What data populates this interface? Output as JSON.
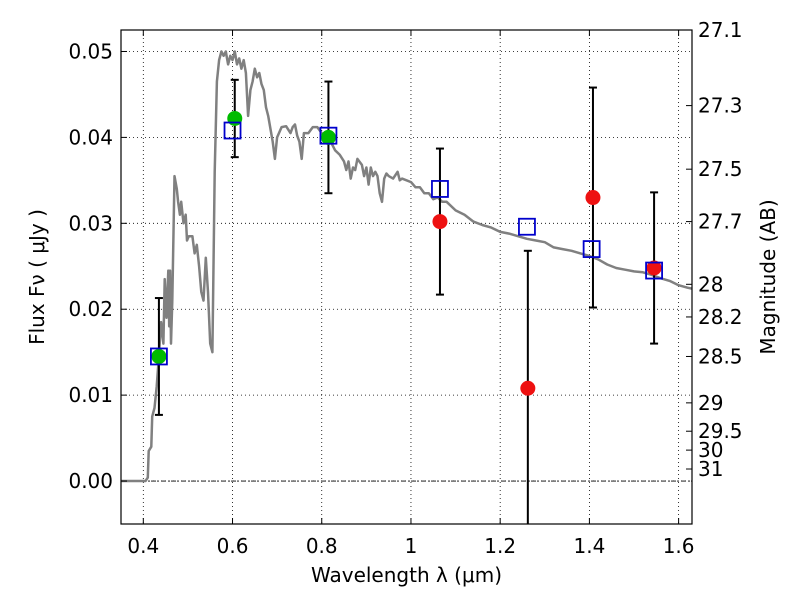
{
  "chart_data": {
    "type": "scatter",
    "title": "",
    "xlabel": "Wavelength  λ (μm)",
    "ylabel": "Flux  Fν  ( μJy )",
    "y2label": "Magnitude (AB)",
    "xlim": [
      0.35,
      1.63
    ],
    "ylim": [
      -0.005,
      0.0525
    ],
    "grid": true,
    "x_ticks": [
      0.4,
      0.6,
      0.8,
      1.0,
      1.2,
      1.4,
      1.6
    ],
    "x_tick_labels": [
      "0.4",
      "0.6",
      "0.8",
      "1",
      "1.2",
      "1.4",
      "1.6"
    ],
    "y_ticks": [
      0.0,
      0.01,
      0.02,
      0.03,
      0.04,
      0.05
    ],
    "y_tick_labels": [
      "0.00",
      "0.01",
      "0.02",
      "0.03",
      "0.04",
      "0.05"
    ],
    "y2_ticks": [
      {
        "label": "27.1",
        "flux": 0.0525
      },
      {
        "label": "27.3",
        "flux": 0.0437
      },
      {
        "label": "27.5",
        "flux": 0.0363
      },
      {
        "label": "27.7",
        "flux": 0.0302
      },
      {
        "label": "28",
        "flux": 0.0229
      },
      {
        "label": "28.2",
        "flux": 0.0191
      },
      {
        "label": "28.5",
        "flux": 0.0145
      },
      {
        "label": "29",
        "flux": 0.0091
      },
      {
        "label": "29.5",
        "flux": 0.0058
      },
      {
        "label": "30",
        "flux": 0.0036
      },
      {
        "label": "31",
        "flux": 0.0014
      }
    ],
    "series": [
      {
        "kind": "model-spectrum",
        "color": "#808080",
        "points": [
          [
            0.35,
            0.0
          ],
          [
            0.38,
            0.0
          ],
          [
            0.39,
            0.0
          ],
          [
            0.4,
            0.0
          ],
          [
            0.405,
            0.0
          ],
          [
            0.41,
            0.0004
          ],
          [
            0.412,
            0.0035
          ],
          [
            0.418,
            0.004
          ],
          [
            0.42,
            0.0075
          ],
          [
            0.425,
            0.0085
          ],
          [
            0.43,
            0.011
          ],
          [
            0.435,
            0.0145
          ],
          [
            0.44,
            0.0185
          ],
          [
            0.445,
            0.016
          ],
          [
            0.448,
            0.0235
          ],
          [
            0.452,
            0.019
          ],
          [
            0.456,
            0.0245
          ],
          [
            0.458,
            0.018
          ],
          [
            0.46,
            0.0245
          ],
          [
            0.462,
            0.016
          ],
          [
            0.465,
            0.021
          ],
          [
            0.47,
            0.0355
          ],
          [
            0.475,
            0.034
          ],
          [
            0.478,
            0.0325
          ],
          [
            0.482,
            0.031
          ],
          [
            0.485,
            0.0325
          ],
          [
            0.49,
            0.03
          ],
          [
            0.495,
            0.031
          ],
          [
            0.498,
            0.028
          ],
          [
            0.502,
            0.0285
          ],
          [
            0.51,
            0.0285
          ],
          [
            0.515,
            0.0265
          ],
          [
            0.52,
            0.0275
          ],
          [
            0.525,
            0.025
          ],
          [
            0.53,
            0.022
          ],
          [
            0.535,
            0.021
          ],
          [
            0.54,
            0.026
          ],
          [
            0.545,
            0.022
          ],
          [
            0.55,
            0.016
          ],
          [
            0.555,
            0.015
          ],
          [
            0.56,
            0.036
          ],
          [
            0.565,
            0.0465
          ],
          [
            0.57,
            0.049
          ],
          [
            0.575,
            0.05
          ],
          [
            0.58,
            0.0495
          ],
          [
            0.585,
            0.05
          ],
          [
            0.59,
            0.0485
          ],
          [
            0.595,
            0.0495
          ],
          [
            0.6,
            0.049
          ],
          [
            0.605,
            0.05
          ],
          [
            0.61,
            0.0485
          ],
          [
            0.615,
            0.0492
          ],
          [
            0.62,
            0.048
          ],
          [
            0.625,
            0.049
          ],
          [
            0.63,
            0.0475
          ],
          [
            0.635,
            0.0425
          ],
          [
            0.64,
            0.0455
          ],
          [
            0.645,
            0.0465
          ],
          [
            0.65,
            0.048
          ],
          [
            0.655,
            0.047
          ],
          [
            0.66,
            0.0475
          ],
          [
            0.665,
            0.0462
          ],
          [
            0.67,
            0.0455
          ],
          [
            0.675,
            0.0435
          ],
          [
            0.68,
            0.0425
          ],
          [
            0.69,
            0.0395
          ],
          [
            0.695,
            0.0375
          ],
          [
            0.7,
            0.04
          ],
          [
            0.71,
            0.0412
          ],
          [
            0.72,
            0.0413
          ],
          [
            0.73,
            0.0405
          ],
          [
            0.735,
            0.0412
          ],
          [
            0.74,
            0.0415
          ],
          [
            0.745,
            0.0402
          ],
          [
            0.75,
            0.0395
          ],
          [
            0.755,
            0.0375
          ],
          [
            0.76,
            0.0405
          ],
          [
            0.77,
            0.0405
          ],
          [
            0.78,
            0.0412
          ],
          [
            0.79,
            0.0412
          ],
          [
            0.8,
            0.0405
          ],
          [
            0.81,
            0.04
          ],
          [
            0.82,
            0.0395
          ],
          [
            0.83,
            0.0385
          ],
          [
            0.84,
            0.038
          ],
          [
            0.85,
            0.0372
          ],
          [
            0.855,
            0.0362
          ],
          [
            0.86,
            0.0372
          ],
          [
            0.865,
            0.0352
          ],
          [
            0.87,
            0.0365
          ],
          [
            0.875,
            0.0362
          ],
          [
            0.88,
            0.0375
          ],
          [
            0.89,
            0.0368
          ],
          [
            0.895,
            0.0355
          ],
          [
            0.9,
            0.0365
          ],
          [
            0.905,
            0.0345
          ],
          [
            0.91,
            0.0365
          ],
          [
            0.915,
            0.0355
          ],
          [
            0.92,
            0.036
          ],
          [
            0.925,
            0.0355
          ],
          [
            0.93,
            0.0335
          ],
          [
            0.935,
            0.0325
          ],
          [
            0.94,
            0.0352
          ],
          [
            0.945,
            0.0358
          ],
          [
            0.95,
            0.0355
          ],
          [
            0.96,
            0.0352
          ],
          [
            0.97,
            0.036
          ],
          [
            0.975,
            0.035
          ],
          [
            0.98,
            0.0352
          ],
          [
            0.99,
            0.035
          ],
          [
            1.0,
            0.0348
          ],
          [
            1.01,
            0.0342
          ],
          [
            1.02,
            0.0342
          ],
          [
            1.03,
            0.0335
          ],
          [
            1.04,
            0.0335
          ],
          [
            1.05,
            0.0328
          ],
          [
            1.06,
            0.033
          ],
          [
            1.07,
            0.0325
          ],
          [
            1.08,
            0.0325
          ],
          [
            1.1,
            0.0315
          ],
          [
            1.12,
            0.031
          ],
          [
            1.14,
            0.0302
          ],
          [
            1.16,
            0.0298
          ],
          [
            1.18,
            0.0295
          ],
          [
            1.2,
            0.029
          ],
          [
            1.22,
            0.0288
          ],
          [
            1.24,
            0.0285
          ],
          [
            1.26,
            0.0282
          ],
          [
            1.28,
            0.028
          ],
          [
            1.3,
            0.0278
          ],
          [
            1.32,
            0.0272
          ],
          [
            1.34,
            0.027
          ],
          [
            1.36,
            0.0268
          ],
          [
            1.38,
            0.0265
          ],
          [
            1.4,
            0.0262
          ],
          [
            1.42,
            0.0258
          ],
          [
            1.44,
            0.0252
          ],
          [
            1.46,
            0.0248
          ],
          [
            1.48,
            0.0246
          ],
          [
            1.5,
            0.0244
          ],
          [
            1.52,
            0.0243
          ],
          [
            1.54,
            0.024
          ],
          [
            1.56,
            0.0236
          ],
          [
            1.58,
            0.0233
          ],
          [
            1.6,
            0.0228
          ],
          [
            1.62,
            0.0225
          ],
          [
            1.63,
            0.0224
          ]
        ]
      },
      {
        "kind": "observed-points",
        "color_detected": "#00bb00",
        "color_marginal": "#ee1111",
        "points": [
          {
            "x": 0.435,
            "y": 0.0145,
            "err": 0.0068,
            "status": "detected"
          },
          {
            "x": 0.605,
            "y": 0.0422,
            "err": 0.0045,
            "status": "detected"
          },
          {
            "x": 0.815,
            "y": 0.04,
            "err": 0.0065,
            "status": "detected"
          },
          {
            "x": 1.065,
            "y": 0.0302,
            "err": 0.0085,
            "status": "marginal"
          },
          {
            "x": 1.262,
            "y": 0.0108,
            "err": 0.016,
            "status": "marginal"
          },
          {
            "x": 1.408,
            "y": 0.033,
            "err": 0.0128,
            "status": "marginal"
          },
          {
            "x": 1.545,
            "y": 0.0248,
            "err": 0.0088,
            "status": "marginal"
          }
        ]
      },
      {
        "kind": "model-band-flux",
        "color": "#0000cc",
        "points": [
          {
            "x": 0.435,
            "y": 0.0145
          },
          {
            "x": 0.6,
            "y": 0.0408
          },
          {
            "x": 0.815,
            "y": 0.0402
          },
          {
            "x": 1.065,
            "y": 0.034
          },
          {
            "x": 1.26,
            "y": 0.0296
          },
          {
            "x": 1.405,
            "y": 0.027
          },
          {
            "x": 1.545,
            "y": 0.0245
          }
        ]
      }
    ]
  }
}
